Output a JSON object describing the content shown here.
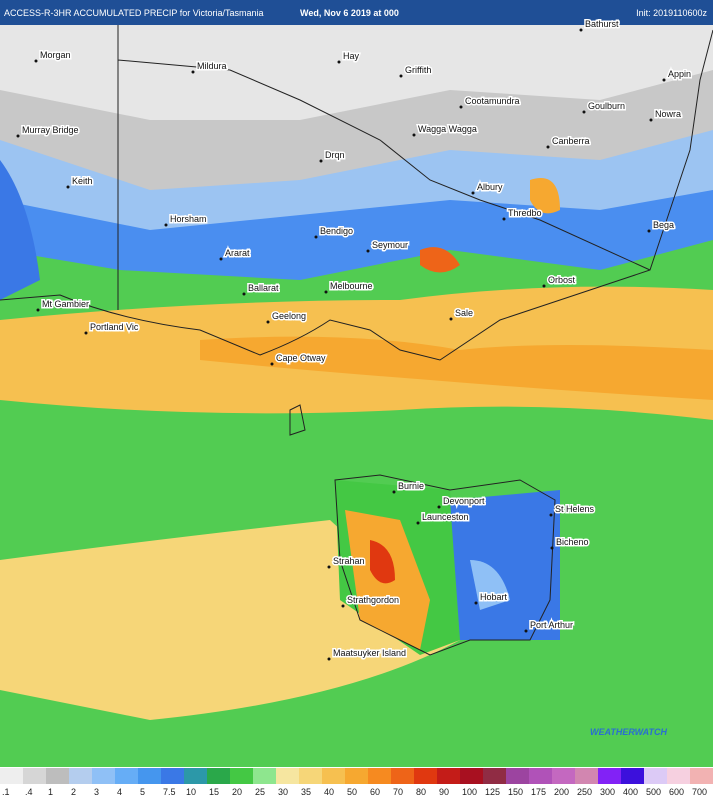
{
  "header": {
    "title": "ACCESS-R-3HR ACCUMULATED PRECIP for Victoria/Tasmania",
    "date": "Wed, Nov 6 2019 at 000",
    "init": "Init: 2019110600z"
  },
  "cities": [
    {
      "label": "Bathurst"
    },
    {
      "label": "Morgan"
    },
    {
      "label": "Mildura"
    },
    {
      "label": "Hay"
    },
    {
      "label": "Griffith"
    },
    {
      "label": "Appin"
    },
    {
      "label": "Cootamundra"
    },
    {
      "label": "Goulburn"
    },
    {
      "label": "Nowra"
    },
    {
      "label": "Murray Bridge"
    },
    {
      "label": "Wagga Wagga"
    },
    {
      "label": "Canberra"
    },
    {
      "label": "Drqn"
    },
    {
      "label": "Keith"
    },
    {
      "label": "Albury"
    },
    {
      "label": "Thredbo"
    },
    {
      "label": "Horsham"
    },
    {
      "label": "Bega"
    },
    {
      "label": "Bendigo"
    },
    {
      "label": "Seymour"
    },
    {
      "label": "Ararat"
    },
    {
      "label": "Orbost"
    },
    {
      "label": "Ballarat"
    },
    {
      "label": "Melbourne"
    },
    {
      "label": "Mt Gambier"
    },
    {
      "label": "Sale"
    },
    {
      "label": "Geelong"
    },
    {
      "label": "Portland Vic"
    },
    {
      "label": "Cape Otway"
    },
    {
      "label": "Burnie"
    },
    {
      "label": "Devonport"
    },
    {
      "label": "Launceston"
    },
    {
      "label": "St Helens"
    },
    {
      "label": "Bicheno"
    },
    {
      "label": "Strahan"
    },
    {
      "label": "Hobart"
    },
    {
      "label": "Strathgordon"
    },
    {
      "label": "Port Arthur"
    },
    {
      "label": "Maatsuyker Island"
    }
  ],
  "logo": "WEATHERWATCH",
  "legend": {
    "labels": [
      ".1",
      ".4",
      "1",
      "2",
      "3",
      "4",
      "5",
      "7.5",
      "10",
      "15",
      "20",
      "25",
      "30",
      "35",
      "40",
      "50",
      "60",
      "70",
      "80",
      "90",
      "100",
      "125",
      "150",
      "175",
      "200",
      "250",
      "300",
      "400",
      "500",
      "600",
      "700"
    ],
    "colors": [
      "#eeeeee",
      "#d6d6d6",
      "#bdbdbd",
      "#b4cdee",
      "#8fc0f6",
      "#66adf6",
      "#4596ee",
      "#3a78e6",
      "#2c98a8",
      "#2aa84a",
      "#44c844",
      "#8ee68e",
      "#f6e6a0",
      "#f6d678",
      "#f6c050",
      "#f6a830",
      "#f68a20",
      "#ee6418",
      "#e03810",
      "#c41c18",
      "#a81020",
      "#902c44",
      "#9c44a0",
      "#b052b8",
      "#c468c0",
      "#d286b0",
      "#8222f6",
      "#3c10dc",
      "#dccaf6",
      "#f6d0e0",
      "#f2b2b2"
    ]
  }
}
